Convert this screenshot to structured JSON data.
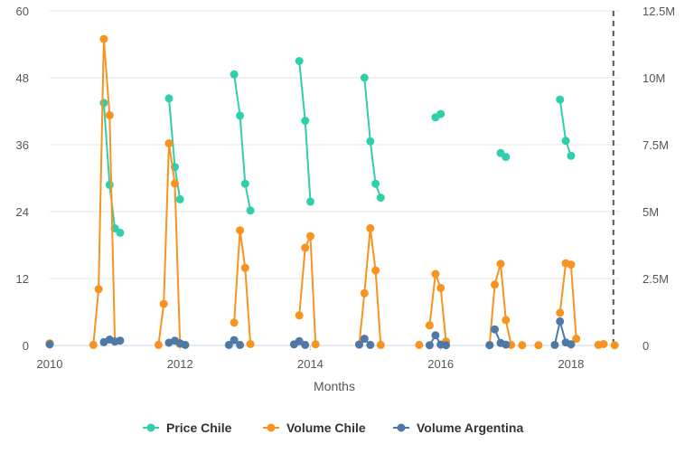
{
  "chart_data": {
    "type": "line",
    "xlabel": "Months",
    "x_ticks": [
      "2010",
      "2012",
      "2014",
      "2016",
      "2018"
    ],
    "x_range": [
      2010.0,
      2018.75
    ],
    "y_left": {
      "range": [
        0,
        60
      ],
      "ticks": [
        "0",
        "12",
        "24",
        "36",
        "48",
        "60"
      ]
    },
    "y_right": {
      "range": [
        0,
        12500000
      ],
      "ticks": [
        "0",
        "2.5M",
        "5M",
        "7.5M",
        "10M",
        "12.5M"
      ]
    },
    "grid": "horizontal",
    "legend_position": "bottom",
    "reference_line_x": 2018.65,
    "series": [
      {
        "name": "Price Chile",
        "color": "#2ecfaa",
        "axis": "left",
        "segments": [
          [
            [
              2010.83,
              43.5
            ],
            [
              2010.92,
              28.8
            ],
            [
              2011.0,
              21.0
            ],
            [
              2011.08,
              20.2
            ]
          ],
          [
            [
              2011.83,
              44.3
            ],
            [
              2011.92,
              32.0
            ],
            [
              2012.0,
              26.2
            ]
          ],
          [
            [
              2012.83,
              48.6
            ],
            [
              2012.92,
              41.2
            ],
            [
              2013.0,
              29.0
            ],
            [
              2013.08,
              24.2
            ]
          ],
          [
            [
              2013.83,
              51.0
            ],
            [
              2013.92,
              40.3
            ],
            [
              2014.0,
              25.8
            ]
          ],
          [
            [
              2014.83,
              48.0
            ],
            [
              2014.92,
              36.6
            ],
            [
              2015.0,
              29.0
            ],
            [
              2015.08,
              26.5
            ]
          ],
          [
            [
              2015.92,
              40.9
            ],
            [
              2016.0,
              41.5
            ]
          ],
          [
            [
              2016.92,
              34.5
            ],
            [
              2017.0,
              33.8
            ]
          ],
          [
            [
              2017.83,
              44.1
            ],
            [
              2017.92,
              36.7
            ],
            [
              2018.0,
              34.0
            ]
          ]
        ]
      },
      {
        "name": "Volume Chile",
        "color": "#f7931e",
        "axis": "right",
        "segments": [
          [
            [
              2010.0,
              80000
            ]
          ],
          [
            [
              2010.67,
              20000
            ],
            [
              2010.75,
              2100000
            ],
            [
              2010.83,
              11450000
            ],
            [
              2010.92,
              8600000
            ],
            [
              2011.0,
              150000
            ]
          ],
          [
            [
              2011.67,
              20000
            ],
            [
              2011.75,
              1550000
            ],
            [
              2011.83,
              7550000
            ],
            [
              2011.92,
              6050000
            ],
            [
              2012.0,
              50000
            ]
          ],
          [
            [
              2012.83,
              850000
            ],
            [
              2012.92,
              4300000
            ],
            [
              2013.0,
              2900000
            ],
            [
              2013.08,
              50000
            ]
          ],
          [
            [
              2013.83,
              1120000
            ],
            [
              2013.92,
              3650000
            ],
            [
              2014.0,
              4080000
            ],
            [
              2014.08,
              40000
            ]
          ],
          [
            [
              2014.75,
              40000
            ],
            [
              2014.83,
              1950000
            ],
            [
              2014.92,
              4380000
            ],
            [
              2015.0,
              2800000
            ],
            [
              2015.08,
              20000
            ]
          ],
          [
            [
              2015.67,
              20000
            ]
          ],
          [
            [
              2015.83,
              750000
            ],
            [
              2015.92,
              2670000
            ],
            [
              2016.0,
              2150000
            ],
            [
              2016.08,
              150000
            ]
          ],
          [
            [
              2016.75,
              20000
            ],
            [
              2016.83,
              2270000
            ],
            [
              2016.92,
              3050000
            ],
            [
              2017.0,
              950000
            ],
            [
              2017.08,
              20000
            ]
          ],
          [
            [
              2017.25,
              10000
            ]
          ],
          [
            [
              2017.5,
              10000
            ]
          ],
          [
            [
              2017.83,
              1220000
            ],
            [
              2017.92,
              3070000
            ],
            [
              2018.0,
              3020000
            ],
            [
              2018.08,
              250000
            ]
          ],
          [
            [
              2018.42,
              20000
            ],
            [
              2018.5,
              50000
            ]
          ],
          [
            [
              2018.67,
              10000
            ]
          ]
        ]
      },
      {
        "name": "Volume Argentina",
        "color": "#4e79a7",
        "axis": "right",
        "segments": [
          [
            [
              2010.0,
              40000
            ]
          ],
          [
            [
              2010.83,
              120000
            ],
            [
              2010.92,
              220000
            ],
            [
              2011.0,
              150000
            ],
            [
              2011.08,
              180000
            ]
          ],
          [
            [
              2011.83,
              100000
            ],
            [
              2011.92,
              180000
            ],
            [
              2012.0,
              80000
            ],
            [
              2012.08,
              20000
            ]
          ],
          [
            [
              2012.75,
              20000
            ],
            [
              2012.83,
              200000
            ],
            [
              2012.92,
              20000
            ]
          ],
          [
            [
              2013.75,
              40000
            ],
            [
              2013.83,
              160000
            ],
            [
              2013.92,
              20000
            ]
          ],
          [
            [
              2014.75,
              30000
            ],
            [
              2014.83,
              250000
            ],
            [
              2014.92,
              20000
            ]
          ],
          [
            [
              2015.83,
              10000
            ],
            [
              2015.92,
              380000
            ],
            [
              2016.0,
              30000
            ],
            [
              2016.08,
              10000
            ]
          ],
          [
            [
              2016.75,
              10000
            ]
          ],
          [
            [
              2016.83,
              600000
            ],
            [
              2016.92,
              90000
            ],
            [
              2017.0,
              30000
            ]
          ],
          [
            [
              2017.75,
              20000
            ],
            [
              2017.83,
              900000
            ],
            [
              2017.92,
              110000
            ],
            [
              2018.0,
              40000
            ]
          ]
        ]
      }
    ]
  }
}
